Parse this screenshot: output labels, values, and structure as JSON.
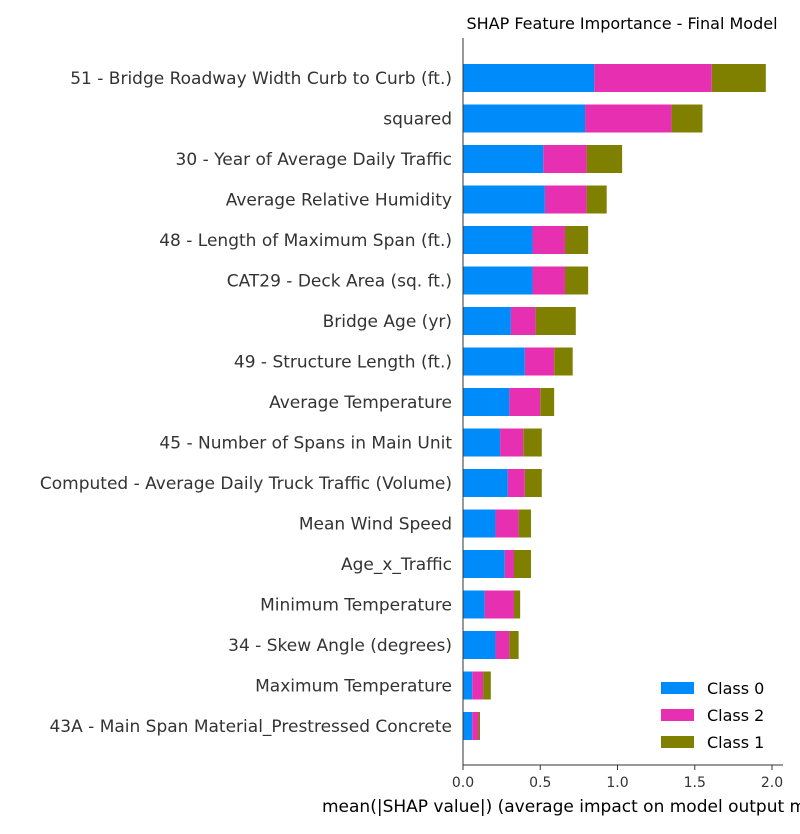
{
  "chart_data": {
    "type": "bar",
    "orientation": "horizontal",
    "stacked": true,
    "title": "SHAP Feature Importance - Final Model",
    "xlabel": "mean(|SHAP value|) (average impact on model output magnitude)",
    "ylabel": "",
    "xlim": [
      0,
      2.05
    ],
    "xticks": [
      0.0,
      0.5,
      1.0,
      1.5,
      2.0
    ],
    "xtick_labels": [
      "0.0",
      "0.5",
      "1.0",
      "1.5",
      "2.0"
    ],
    "grid": false,
    "legend_position": "lower-right",
    "categories": [
      "51 - Bridge Roadway Width Curb to Curb (ft.)",
      "squared",
      "30 - Year of Average Daily Traffic",
      "Average Relative Humidity",
      "48 - Length of Maximum Span (ft.)",
      "CAT29 - Deck Area (sq. ft.)",
      "Bridge Age (yr)",
      "49 - Structure Length (ft.)",
      "Average Temperature",
      "45 - Number of Spans in Main Unit",
      "Computed - Average Daily Truck Traffic (Volume)",
      "Mean Wind Speed",
      "Age_x_Traffic",
      "Minimum Temperature",
      "34 - Skew Angle (degrees)",
      "Maximum Temperature",
      "43A - Main Span Material_Prestressed Concrete"
    ],
    "series": [
      {
        "name": "Class 0",
        "color": "#008bfb",
        "values": [
          0.85,
          0.79,
          0.52,
          0.53,
          0.45,
          0.45,
          0.31,
          0.4,
          0.3,
          0.24,
          0.29,
          0.21,
          0.27,
          0.14,
          0.21,
          0.06,
          0.06
        ]
      },
      {
        "name": "Class 2",
        "color": "#e72fb1",
        "values": [
          0.76,
          0.56,
          0.28,
          0.27,
          0.21,
          0.21,
          0.16,
          0.19,
          0.2,
          0.15,
          0.11,
          0.15,
          0.06,
          0.19,
          0.09,
          0.07,
          0.04
        ]
      },
      {
        "name": "Class 1",
        "color": "#808000",
        "values": [
          0.35,
          0.2,
          0.23,
          0.13,
          0.15,
          0.15,
          0.26,
          0.12,
          0.09,
          0.12,
          0.11,
          0.08,
          0.11,
          0.04,
          0.06,
          0.05,
          0.01
        ]
      }
    ],
    "legend": [
      {
        "label": "Class 0",
        "color": "#008bfb"
      },
      {
        "label": "Class 2",
        "color": "#e72fb1"
      },
      {
        "label": "Class 1",
        "color": "#808000"
      }
    ]
  }
}
